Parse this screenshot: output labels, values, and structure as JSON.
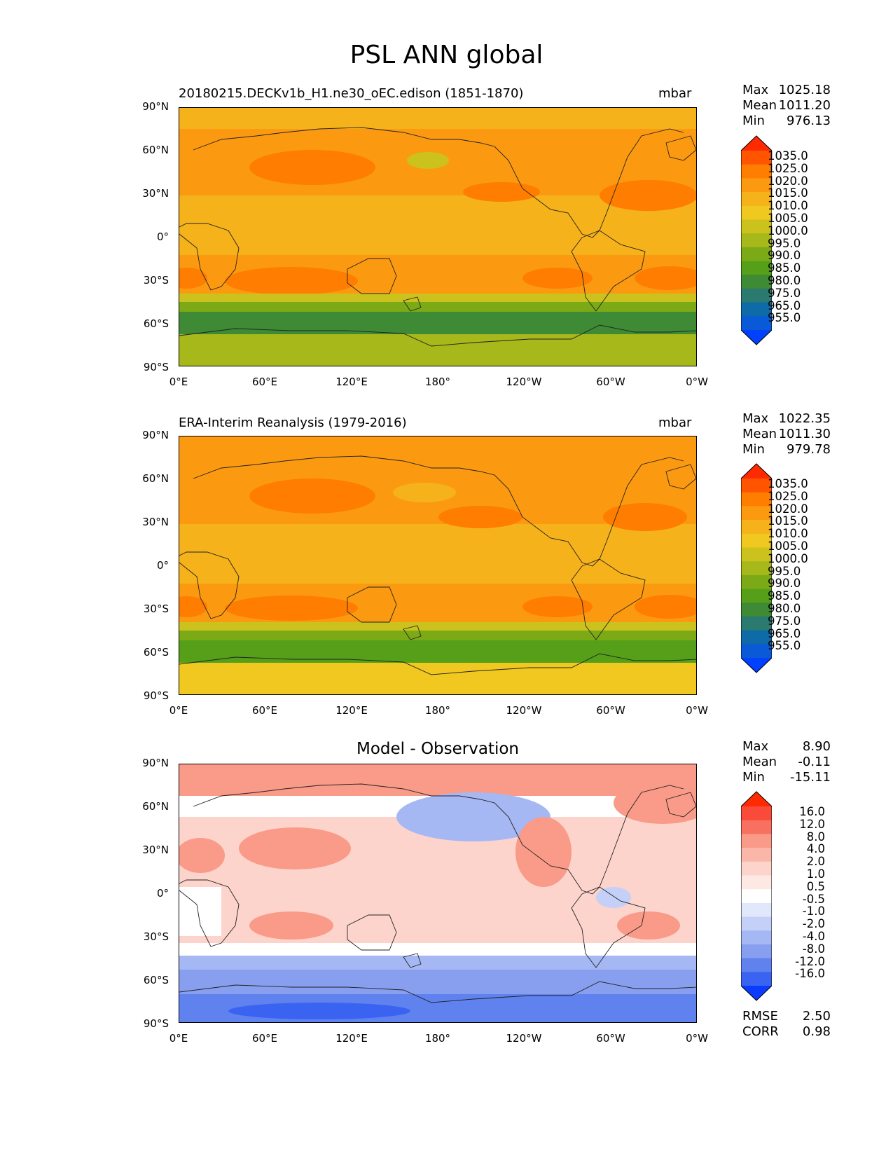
{
  "figure_title": "PSL ANN global",
  "panels": [
    {
      "id": "model",
      "title_left": "20180215.DECKv1b_H1.ne30_oEC.edison (1851-1870)",
      "title_right": "mbar",
      "stats": {
        "labels": [
          "Max",
          "Mean",
          "Min"
        ],
        "values": [
          "1025.18",
          "1011.20",
          "976.13"
        ]
      },
      "colorbar": {
        "labels": [
          "1035.0",
          "1025.0",
          "1020.0",
          "1015.0",
          "1010.0",
          "1005.0",
          "1000.0",
          "995.0",
          "990.0",
          "985.0",
          "980.0",
          "975.0",
          "965.0",
          "955.0"
        ],
        "colors": [
          "#ff2a00",
          "#ff5500",
          "#ff7d00",
          "#fb9a10",
          "#f6b21a",
          "#f0c820",
          "#ccc21e",
          "#a6b81a",
          "#7caa16",
          "#55a018",
          "#3e8a35",
          "#2b7a6f",
          "#0f6aa8",
          "#0a5ad8",
          "#0040ff"
        ],
        "max_color": "#ff2a00",
        "min_color": "#0040ff"
      },
      "field_colors": {
        "north_pole": "#f6b21a",
        "n_midlat": "#fb9a10",
        "subtrop_high": "#ff7d00",
        "tropics": "#f6b21a",
        "s_subtrop": "#fb9a10",
        "s_high": "#ff7d00",
        "s_ocean_1": "#ccc21e",
        "s_ocean_2": "#7caa16",
        "s_ocean_3": "#3e8a35",
        "antarctic": "#a6b81a"
      }
    },
    {
      "id": "obs",
      "title_left": "ERA-Interim Reanalysis (1979-2016)",
      "title_right": "mbar",
      "stats": {
        "labels": [
          "Max",
          "Mean",
          "Min"
        ],
        "values": [
          "1022.35",
          "1011.30",
          "979.78"
        ]
      },
      "colorbar": {
        "labels": [
          "1035.0",
          "1025.0",
          "1020.0",
          "1015.0",
          "1010.0",
          "1005.0",
          "1000.0",
          "995.0",
          "990.0",
          "985.0",
          "980.0",
          "975.0",
          "965.0",
          "955.0"
        ],
        "colors": [
          "#ff2a00",
          "#ff5500",
          "#ff7d00",
          "#fb9a10",
          "#f6b21a",
          "#f0c820",
          "#ccc21e",
          "#a6b81a",
          "#7caa16",
          "#55a018",
          "#3e8a35",
          "#2b7a6f",
          "#0f6aa8",
          "#0a5ad8",
          "#0040ff"
        ],
        "max_color": "#ff2a00",
        "min_color": "#0040ff"
      },
      "field_colors": {
        "north_pole": "#fb9a10",
        "n_midlat": "#fb9a10",
        "subtrop_high": "#ff7d00",
        "tropics": "#f6b21a",
        "s_subtrop": "#fb9a10",
        "s_high": "#ff7d00",
        "s_ocean_1": "#ccc21e",
        "s_ocean_2": "#7caa16",
        "s_ocean_3": "#55a018",
        "antarctic": "#f0c820"
      }
    },
    {
      "id": "diff",
      "title_center": "Model - Observation",
      "stats": {
        "labels": [
          "Max",
          "Mean",
          "Min"
        ],
        "values": [
          "8.90",
          "-0.11",
          "-15.11"
        ]
      },
      "colorbar": {
        "labels": [
          "16.0",
          "12.0",
          "8.0",
          "4.0",
          "2.0",
          "1.0",
          "0.5",
          "-0.5",
          "-1.0",
          "-2.0",
          "-4.0",
          "-8.0",
          "-12.0",
          "-16.0"
        ],
        "colors": [
          "#ff2a00",
          "#fa4a3a",
          "#f87060",
          "#fa9a88",
          "#fbb6aa",
          "#fcd4cc",
          "#fde8e4",
          "#ffffff",
          "#e2e8fb",
          "#c4d0f8",
          "#a6b8f4",
          "#889ff0",
          "#5f82ef",
          "#3a63f2",
          "#0a3bff"
        ],
        "max_color": "#ff2a00",
        "min_color": "#0a3bff"
      },
      "metrics": {
        "labels": [
          "RMSE",
          "CORR"
        ],
        "values": [
          "2.50",
          "0.98"
        ]
      }
    }
  ],
  "axes": {
    "y_ticks": [
      "90°N",
      "60°N",
      "30°N",
      "0°",
      "30°S",
      "60°S",
      "90°S"
    ],
    "x_ticks": [
      "0°E",
      "60°E",
      "120°E",
      "180°",
      "120°W",
      "60°W",
      "0°W"
    ]
  }
}
